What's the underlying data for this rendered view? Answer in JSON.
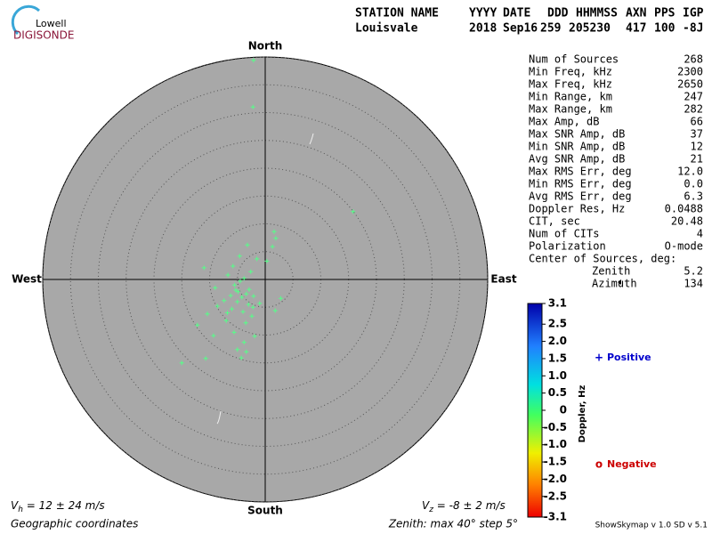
{
  "logo": {
    "top": "Lowell",
    "bottom": "DIGISONDE"
  },
  "header": {
    "columns": [
      "STATION NAME",
      "YYYY",
      "DATE",
      "DDD",
      "HHMMSS",
      "AXN",
      "PPS",
      "IGP"
    ],
    "values": [
      "Louisvale",
      "2018",
      "Sep16",
      "259",
      "205230",
      "417",
      "100",
      "-8J"
    ]
  },
  "stats": [
    [
      "Num of Sources",
      "268"
    ],
    [
      "Min Freq, kHz",
      "2300"
    ],
    [
      "Max Freq, kHz",
      "2650"
    ],
    [
      "Min Range, km",
      "247"
    ],
    [
      "Max Range, km",
      "282"
    ],
    [
      "Max Amp, dB",
      "66"
    ],
    [
      "Max SNR Amp, dB",
      "37"
    ],
    [
      "Min SNR Amp, dB",
      "12"
    ],
    [
      "Avg SNR Amp, dB",
      "21"
    ],
    [
      "Max RMS Err, deg",
      "12.0"
    ],
    [
      "Min RMS Err, deg",
      "0.0"
    ],
    [
      "Avg RMS Err, deg",
      "6.3"
    ],
    [
      "Doppler Res, Hz",
      "0.0488"
    ],
    [
      "CIT, sec",
      "20.48"
    ],
    [
      "Num of CITs",
      "4"
    ],
    [
      "Polarization",
      "O-mode"
    ]
  ],
  "center": {
    "title": "Center of Sources, deg:",
    "rows": [
      [
        "Zenith",
        "5.2"
      ],
      [
        "Azimuth",
        "134"
      ]
    ]
  },
  "footer": {
    "vh": {
      "symbol": "V",
      "sub": "h",
      "text": " = 12 ± 24 m/s"
    },
    "vz": {
      "symbol": "V",
      "sub": "z",
      "text": " = -8 ± 2 m/s"
    },
    "coords": "Geographic coordinates",
    "zenith": "Zenith: max 40°  step 5°",
    "version": "ShowSkymap v 1.0  SD v 5.1"
  },
  "chart_data": {
    "type": "skymap",
    "directions": {
      "north": "North",
      "south": "South",
      "east": "East",
      "west": "West"
    },
    "rlim": [
      0,
      40
    ],
    "rticks": [
      5,
      10,
      15,
      20,
      25,
      30,
      35,
      40
    ],
    "series": [
      {
        "name": "Sources",
        "color": "#55ff88",
        "x": [
          -2.1,
          -2.2,
          15.8,
          1.6,
          1.9,
          -3.2,
          1.3,
          -4.6,
          -1.5,
          0.3,
          -11.0,
          -5.8,
          -2.6,
          -6.7,
          -3.8,
          -4.5,
          -9.0,
          -2.9,
          -5.3,
          -3.4,
          -6.2,
          -4.2,
          -2.1,
          2.8,
          -7.4,
          -5.0,
          -3.0,
          -1.0,
          -8.6,
          -6.0,
          -4.0,
          1.8,
          -10.4,
          -2.4,
          -12.2,
          -7.0,
          -3.5,
          -9.3,
          -5.6,
          -1.9,
          -3.8,
          -5.0,
          -4.3,
          -10.7,
          -15.0,
          -3.4,
          -6.8,
          -2.2,
          -5.5,
          -4.9
        ],
        "y": [
          39.4,
          31.0,
          12.2,
          8.6,
          7.4,
          6.2,
          5.9,
          4.2,
          3.7,
          3.3,
          2.1,
          2.4,
          1.4,
          0.8,
          0.2,
          -0.3,
          -1.5,
          -1.8,
          -1.9,
          -2.6,
          -2.9,
          -3.2,
          -3.0,
          -3.4,
          -3.8,
          -4.0,
          -4.5,
          -4.3,
          -4.8,
          -5.3,
          -5.8,
          -5.6,
          -6.2,
          -6.6,
          -8.2,
          -7.4,
          -7.8,
          -10.1,
          -9.5,
          -10.2,
          -11.3,
          -12.6,
          -14.1,
          -14.2,
          -15.0,
          -13.0,
          -6.0,
          -5.0,
          -1.0,
          -2.2
        ]
      }
    ],
    "colorbar": {
      "label": "Doppler, Hz",
      "clim": [
        -3.1,
        3.1
      ],
      "ticks": [
        3.1,
        2.5,
        {
          "value": 2,
          "label": "2.0"
        },
        1.5,
        {
          "value": 1,
          "label": "1.0"
        },
        0.5,
        0,
        -0.5,
        {
          "value": -1,
          "label": "-1.0"
        },
        -1.5,
        {
          "value": -2,
          "label": "-2.0"
        },
        -2.5,
        -3.1
      ]
    },
    "legend": [
      {
        "symbol": "+",
        "name": "Positive",
        "color": "#0000cc"
      },
      {
        "symbol": "o",
        "name": "Negative",
        "color": "#cc0000"
      }
    ]
  }
}
